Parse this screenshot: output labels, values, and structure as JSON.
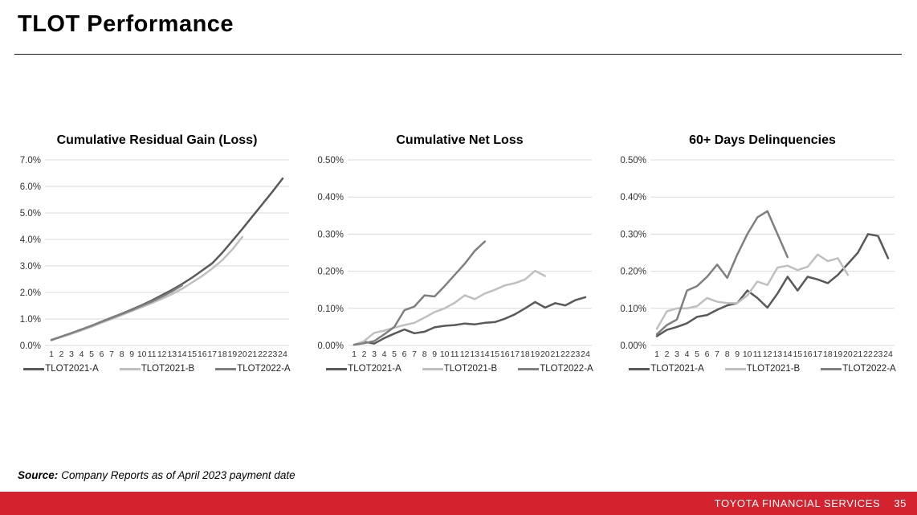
{
  "header": {
    "title": "TLOT Performance"
  },
  "source_note": {
    "label": "Source:",
    "text": "Company Reports as of April 2023 payment date"
  },
  "footer": {
    "brand": "TOYOTA FINANCIAL SERVICES",
    "page_number": "35",
    "bar_color": "#D2232E"
  },
  "colors": {
    "series_dark": "#595959",
    "series_light": "#BFBFBF",
    "series_mid": "#7F7F7F",
    "gridline": "#D9D9D9"
  },
  "chart_data": [
    {
      "type": "line",
      "title": "Cumulative Residual Gain (Loss)",
      "x": [
        1,
        2,
        3,
        4,
        5,
        6,
        7,
        8,
        9,
        10,
        11,
        12,
        13,
        14,
        15,
        16,
        17,
        18,
        19,
        20,
        21,
        22,
        23,
        24
      ],
      "ylim": [
        0,
        7
      ],
      "ytick_values": [
        7,
        6,
        5,
        4,
        3,
        2,
        1,
        0
      ],
      "ytick_labels": [
        "7.0%",
        "6.0%",
        "5.0%",
        "4.0%",
        "3.0%",
        "2.0%",
        "1.0%",
        "0.0%"
      ],
      "grid": true,
      "legend_position": "bottom",
      "series": [
        {
          "name": "TLOT2021-A",
          "color_key": "series_dark",
          "values": [
            0.2,
            0.33,
            0.46,
            0.6,
            0.74,
            0.9,
            1.05,
            1.2,
            1.36,
            1.52,
            1.7,
            1.9,
            2.1,
            2.32,
            2.56,
            2.83,
            3.1,
            3.5,
            3.95,
            4.4,
            4.87,
            5.34,
            5.81,
            6.3
          ]
        },
        {
          "name": "TLOT2021-B",
          "color_key": "series_light",
          "values": [
            0.2,
            0.32,
            0.44,
            0.57,
            0.71,
            0.86,
            1.0,
            1.15,
            1.3,
            1.45,
            1.6,
            1.76,
            1.94,
            2.14,
            2.38,
            2.62,
            2.9,
            3.22,
            3.62,
            4.1
          ]
        },
        {
          "name": "TLOT2022-A",
          "color_key": "series_mid",
          "values": [
            0.21,
            0.34,
            0.47,
            0.61,
            0.75,
            0.9,
            1.04,
            1.19,
            1.34,
            1.5,
            1.66,
            1.84,
            2.04,
            2.27
          ]
        }
      ]
    },
    {
      "type": "line",
      "title": "Cumulative Net Loss",
      "x": [
        1,
        2,
        3,
        4,
        5,
        6,
        7,
        8,
        9,
        10,
        11,
        12,
        13,
        14,
        15,
        16,
        17,
        18,
        19,
        20,
        21,
        22,
        23,
        24
      ],
      "ylim": [
        0,
        0.5
      ],
      "ytick_values": [
        0.5,
        0.4,
        0.3,
        0.2,
        0.1,
        0
      ],
      "ytick_labels": [
        "0.50%",
        "0.40%",
        "0.30%",
        "0.20%",
        "0.10%",
        "0.00%"
      ],
      "grid": true,
      "legend_position": "bottom",
      "series": [
        {
          "name": "TLOT2021-A",
          "color_key": "series_dark",
          "values": [
            0.002,
            0.01,
            0.005,
            0.02,
            0.032,
            0.043,
            0.033,
            0.037,
            0.049,
            0.053,
            0.055,
            0.059,
            0.057,
            0.061,
            0.063,
            0.072,
            0.084,
            0.1,
            0.117,
            0.102,
            0.114,
            0.108,
            0.122,
            0.13
          ]
        },
        {
          "name": "TLOT2021-B",
          "color_key": "series_light",
          "values": [
            0.002,
            0.012,
            0.034,
            0.04,
            0.048,
            0.055,
            0.061,
            0.075,
            0.09,
            0.1,
            0.115,
            0.135,
            0.125,
            0.14,
            0.15,
            0.162,
            0.168,
            0.178,
            0.201,
            0.187
          ]
        },
        {
          "name": "TLOT2022-A",
          "color_key": "series_mid",
          "values": [
            0.002,
            0.006,
            0.012,
            0.03,
            0.05,
            0.095,
            0.105,
            0.135,
            0.132,
            0.16,
            0.19,
            0.22,
            0.255,
            0.28
          ]
        }
      ]
    },
    {
      "type": "line",
      "title": "60+ Days Delinquencies",
      "x": [
        1,
        2,
        3,
        4,
        5,
        6,
        7,
        8,
        9,
        10,
        11,
        12,
        13,
        14,
        15,
        16,
        17,
        18,
        19,
        20,
        21,
        22,
        23,
        24
      ],
      "ylim": [
        0,
        0.5
      ],
      "ytick_values": [
        0.5,
        0.4,
        0.3,
        0.2,
        0.1,
        0
      ],
      "ytick_labels": [
        "0.50%",
        "0.40%",
        "0.30%",
        "0.20%",
        "0.10%",
        "0.00%"
      ],
      "grid": true,
      "legend_position": "bottom",
      "series": [
        {
          "name": "TLOT2021-A",
          "color_key": "series_dark",
          "values": [
            0.025,
            0.042,
            0.05,
            0.06,
            0.077,
            0.082,
            0.096,
            0.108,
            0.114,
            0.148,
            0.128,
            0.102,
            0.14,
            0.185,
            0.148,
            0.185,
            0.178,
            0.168,
            0.19,
            0.22,
            0.25,
            0.3,
            0.295,
            0.235
          ]
        },
        {
          "name": "TLOT2021-B",
          "color_key": "series_light",
          "values": [
            0.045,
            0.092,
            0.1,
            0.1,
            0.106,
            0.128,
            0.118,
            0.114,
            0.114,
            0.135,
            0.172,
            0.163,
            0.21,
            0.215,
            0.203,
            0.212,
            0.245,
            0.227,
            0.235,
            0.19
          ]
        },
        {
          "name": "TLOT2022-A",
          "color_key": "series_mid",
          "values": [
            0.03,
            0.055,
            0.07,
            0.148,
            0.16,
            0.185,
            0.218,
            0.182,
            0.245,
            0.3,
            0.345,
            0.362,
            0.3,
            0.238
          ]
        }
      ]
    }
  ]
}
